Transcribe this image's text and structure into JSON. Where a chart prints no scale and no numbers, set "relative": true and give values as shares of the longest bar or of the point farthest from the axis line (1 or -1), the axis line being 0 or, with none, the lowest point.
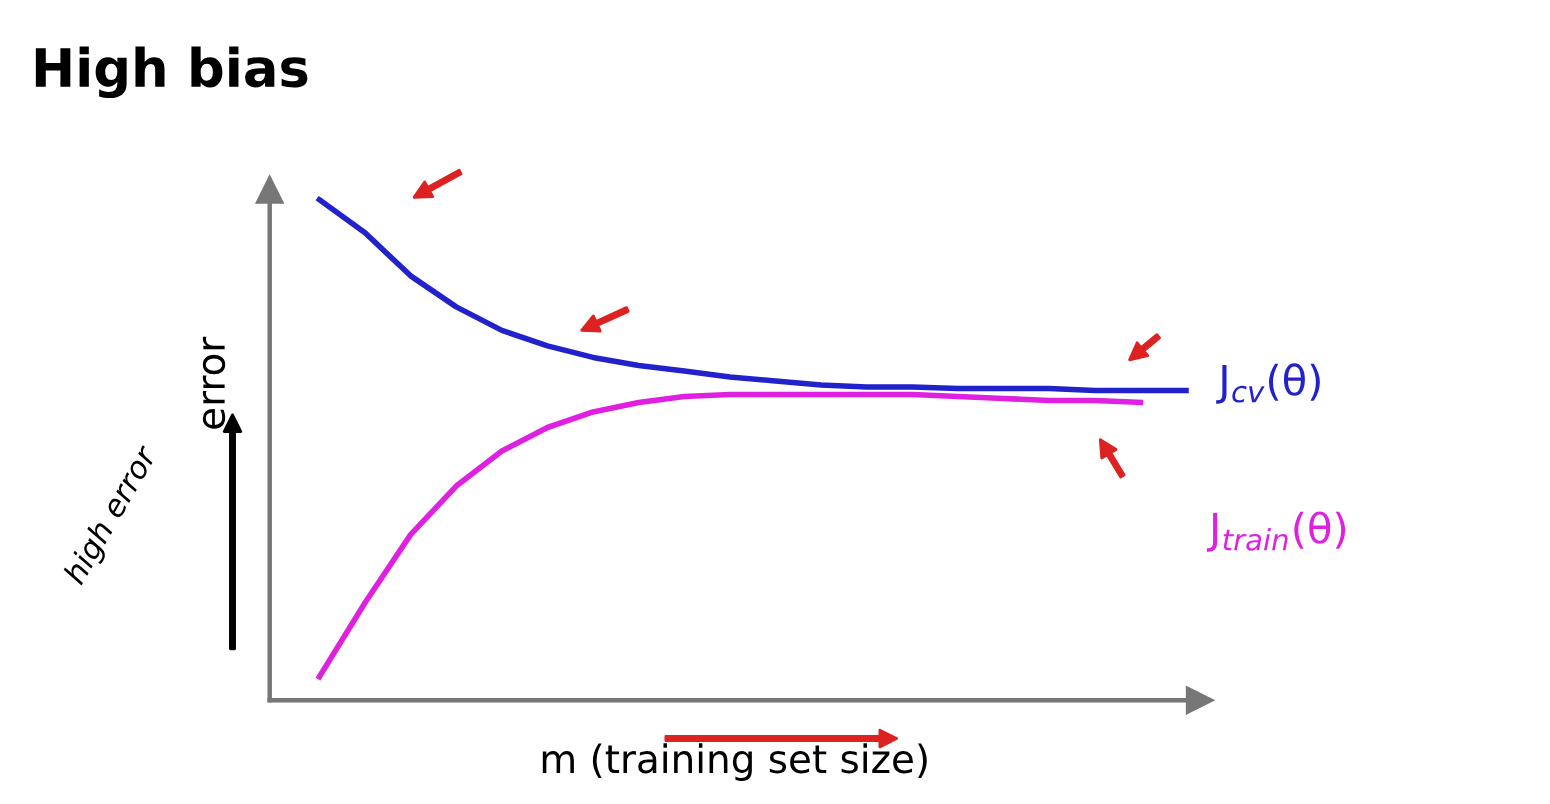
{
  "chart_data": {
    "type": "line",
    "title": "High bias",
    "ylabel": "error",
    "xlabel": "m (training set size)",
    "relative": true,
    "categories": [
      null,
      null,
      null,
      null,
      null,
      null,
      null,
      null,
      null,
      null,
      null,
      null,
      null,
      null,
      null,
      null,
      null,
      null,
      null,
      null
    ],
    "series": [
      {
        "name": "J$_{cv}$(θ)",
        "color": "#2222cc",
        "values": [
          1.0,
          0.934,
          0.848,
          0.786,
          0.739,
          0.708,
          0.685,
          0.669,
          0.658,
          0.646,
          0.638,
          0.63,
          0.626,
          0.626,
          0.623,
          0.623,
          0.623,
          0.619,
          0.619,
          0.619
        ]
      },
      {
        "name": "J$_{train}$(θ)",
        "color": "#e020e0",
        "values": [
          0.047,
          0.195,
          0.331,
          0.428,
          0.498,
          0.545,
          0.576,
          0.595,
          0.607,
          0.611,
          0.611,
          0.611,
          0.611,
          0.611,
          0.607,
          0.603,
          0.599,
          0.599,
          0.595,
          null
        ]
      }
    ],
    "annotations": [
      "high error"
    ],
    "grid": false,
    "legend": false,
    "marker": "none",
    "line_style": "solid"
  }
}
